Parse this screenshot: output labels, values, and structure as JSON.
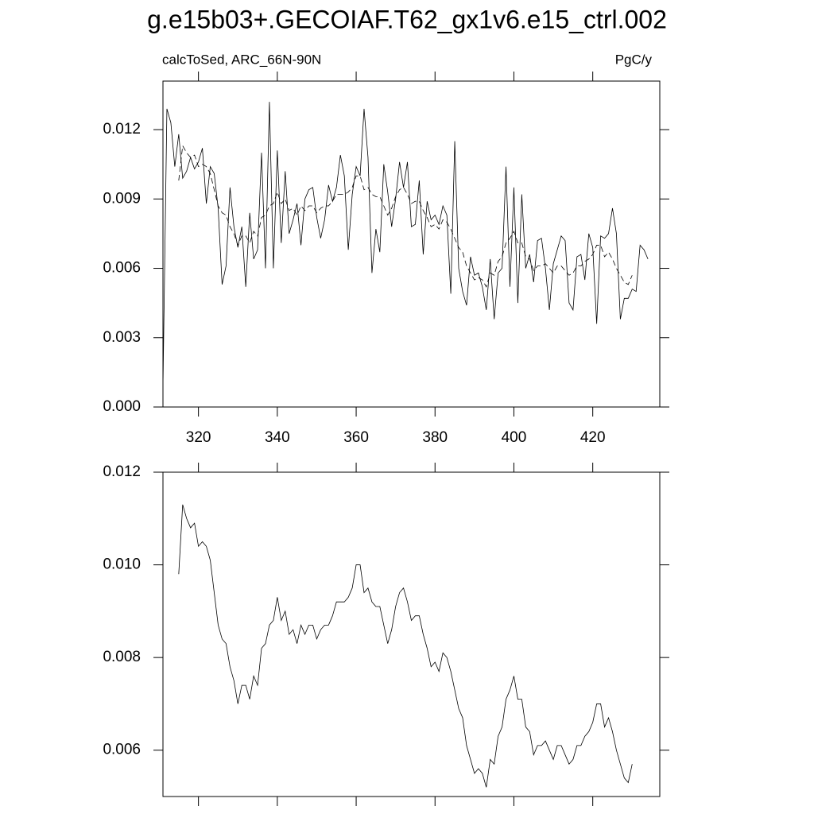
{
  "title": "g.e15b03+.GECOIAF.T62_gx1v6.e15_ctrl.002",
  "chart_data": [
    {
      "type": "line",
      "subtitle_left": "calcToSed, ARC_66N-90N",
      "subtitle_right": "PgC/y",
      "xlim": [
        311,
        437
      ],
      "xticks": [
        320,
        340,
        360,
        380,
        400,
        420
      ],
      "show_xtick_labels": true,
      "ylim": [
        0,
        0.0141
      ],
      "yticks": [
        {
          "value": 0,
          "label": "0.000"
        },
        0.003,
        0.006,
        0.009,
        0.012
      ],
      "series": [
        {
          "color": "#000000",
          "dashed": false,
          "x": [
            311,
            312,
            313,
            314,
            315,
            316,
            317,
            318,
            319,
            320,
            321,
            322,
            323,
            324,
            325,
            326,
            327,
            328,
            329,
            330,
            331,
            332,
            333,
            334,
            335,
            336,
            337,
            338,
            339,
            340,
            341,
            342,
            343,
            344,
            345,
            346,
            347,
            348,
            349,
            350,
            351,
            352,
            353,
            354,
            355,
            356,
            357,
            358,
            359,
            360,
            361,
            362,
            363,
            364,
            365,
            366,
            367,
            368,
            369,
            370,
            371,
            372,
            373,
            374,
            375,
            376,
            377,
            378,
            379,
            380,
            381,
            382,
            383,
            384,
            385,
            386,
            387,
            388,
            389,
            390,
            391,
            392,
            393,
            394,
            395,
            396,
            397,
            398,
            399,
            400,
            401,
            402,
            403,
            404,
            405,
            406,
            407,
            408,
            409,
            410,
            411,
            412,
            413,
            414,
            415,
            416,
            417,
            418,
            419,
            420,
            421,
            422,
            423,
            424,
            425,
            426,
            427,
            428,
            429,
            430,
            431,
            432,
            433,
            434
          ],
          "values": [
            0.0009,
            0.0129,
            0.0123,
            0.0104,
            0.0118,
            0.0099,
            0.0102,
            0.0108,
            0.0103,
            0.0106,
            0.0112,
            0.0088,
            0.0104,
            0.0101,
            0.0086,
            0.0053,
            0.0061,
            0.0095,
            0.0078,
            0.0069,
            0.0078,
            0.0052,
            0.0084,
            0.0064,
            0.0068,
            0.011,
            0.006,
            0.0132,
            0.006,
            0.0111,
            0.0071,
            0.0102,
            0.0075,
            0.0081,
            0.0088,
            0.007,
            0.009,
            0.0094,
            0.0095,
            0.0082,
            0.0073,
            0.0081,
            0.0096,
            0.0089,
            0.0095,
            0.0109,
            0.01,
            0.0068,
            0.0092,
            0.0104,
            0.01,
            0.0129,
            0.0108,
            0.0058,
            0.0077,
            0.0067,
            0.0105,
            0.0093,
            0.0078,
            0.009,
            0.0106,
            0.0095,
            0.0106,
            0.0078,
            0.0079,
            0.0098,
            0.0066,
            0.0089,
            0.0081,
            0.0083,
            0.0079,
            0.0087,
            0.0083,
            0.0049,
            0.0115,
            0.006,
            0.005,
            0.0044,
            0.0065,
            0.0057,
            0.0058,
            0.0052,
            0.0042,
            0.0064,
            0.0038,
            0.0058,
            0.006,
            0.0104,
            0.0052,
            0.0095,
            0.0045,
            0.0092,
            0.006,
            0.0066,
            0.0054,
            0.0072,
            0.0073,
            0.006,
            0.0042,
            0.0062,
            0.0068,
            0.0074,
            0.0072,
            0.0045,
            0.0042,
            0.0065,
            0.0066,
            0.0055,
            0.0075,
            0.0069,
            0.0036,
            0.0074,
            0.0073,
            0.0075,
            0.0086,
            0.0075,
            0.0038,
            0.0047,
            0.0047,
            0.0051,
            0.005,
            0.007,
            0.0068,
            0.0064
          ]
        },
        {
          "color": "#000000",
          "dashed": true,
          "x": [
            315,
            316,
            317,
            318,
            319,
            320,
            321,
            322,
            323,
            324,
            325,
            326,
            327,
            328,
            329,
            330,
            331,
            332,
            333,
            334,
            335,
            336,
            337,
            338,
            339,
            340,
            341,
            342,
            343,
            344,
            345,
            346,
            347,
            348,
            349,
            350,
            351,
            352,
            353,
            354,
            355,
            356,
            357,
            358,
            359,
            360,
            361,
            362,
            363,
            364,
            365,
            366,
            367,
            368,
            369,
            370,
            371,
            372,
            373,
            374,
            375,
            376,
            377,
            378,
            379,
            380,
            381,
            382,
            383,
            384,
            385,
            386,
            387,
            388,
            389,
            390,
            391,
            392,
            393,
            394,
            395,
            396,
            397,
            398,
            399,
            400,
            401,
            402,
            403,
            404,
            405,
            406,
            407,
            408,
            409,
            410,
            411,
            412,
            413,
            414,
            415,
            416,
            417,
            418,
            419,
            420,
            421,
            422,
            423,
            424,
            425,
            426,
            427,
            428,
            429,
            430
          ],
          "values": [
            0.0098,
            0.0113,
            0.011,
            0.0108,
            0.0109,
            0.0104,
            0.0105,
            0.0104,
            0.0101,
            0.0094,
            0.0087,
            0.0084,
            0.0083,
            0.0078,
            0.0075,
            0.007,
            0.0074,
            0.0074,
            0.0071,
            0.0076,
            0.0074,
            0.0082,
            0.0083,
            0.0087,
            0.0088,
            0.0093,
            0.0088,
            0.009,
            0.0085,
            0.0086,
            0.0083,
            0.0087,
            0.0085,
            0.0087,
            0.0087,
            0.0084,
            0.0086,
            0.0087,
            0.0087,
            0.0089,
            0.0092,
            0.0092,
            0.0092,
            0.0093,
            0.0095,
            0.01,
            0.01,
            0.0094,
            0.0095,
            0.0092,
            0.0091,
            0.0091,
            0.0087,
            0.0083,
            0.0086,
            0.0091,
            0.0094,
            0.0095,
            0.0092,
            0.0088,
            0.0089,
            0.0089,
            0.0085,
            0.0082,
            0.0078,
            0.0079,
            0.0077,
            0.0081,
            0.008,
            0.0077,
            0.0073,
            0.0069,
            0.0067,
            0.0061,
            0.0058,
            0.0055,
            0.0056,
            0.0055,
            0.0052,
            0.0058,
            0.0057,
            0.0063,
            0.0065,
            0.0071,
            0.0073,
            0.0076,
            0.0071,
            0.0071,
            0.0065,
            0.0064,
            0.0059,
            0.0061,
            0.0061,
            0.0062,
            0.006,
            0.0058,
            0.0061,
            0.0061,
            0.0059,
            0.0057,
            0.0058,
            0.0061,
            0.0061,
            0.0063,
            0.0064,
            0.0066,
            0.007,
            0.007,
            0.0065,
            0.0067,
            0.0064,
            0.006,
            0.0057,
            0.0054,
            0.0053,
            0.0057
          ]
        }
      ]
    },
    {
      "type": "line",
      "xlim": [
        311,
        437
      ],
      "xticks": [
        320,
        340,
        360,
        380,
        400,
        420
      ],
      "show_xtick_labels": false,
      "ylim": [
        0.005,
        0.012
      ],
      "yticks": [
        0.006,
        0.008,
        {
          "value": 0.01,
          "label": "0.010"
        },
        0.012
      ],
      "series": [
        {
          "color": "#000000",
          "dashed": false,
          "x": [
            315,
            316,
            317,
            318,
            319,
            320,
            321,
            322,
            323,
            324,
            325,
            326,
            327,
            328,
            329,
            330,
            331,
            332,
            333,
            334,
            335,
            336,
            337,
            338,
            339,
            340,
            341,
            342,
            343,
            344,
            345,
            346,
            347,
            348,
            349,
            350,
            351,
            352,
            353,
            354,
            355,
            356,
            357,
            358,
            359,
            360,
            361,
            362,
            363,
            364,
            365,
            366,
            367,
            368,
            369,
            370,
            371,
            372,
            373,
            374,
            375,
            376,
            377,
            378,
            379,
            380,
            381,
            382,
            383,
            384,
            385,
            386,
            387,
            388,
            389,
            390,
            391,
            392,
            393,
            394,
            395,
            396,
            397,
            398,
            399,
            400,
            401,
            402,
            403,
            404,
            405,
            406,
            407,
            408,
            409,
            410,
            411,
            412,
            413,
            414,
            415,
            416,
            417,
            418,
            419,
            420,
            421,
            422,
            423,
            424,
            425,
            426,
            427,
            428,
            429,
            430
          ],
          "values": [
            0.0098,
            0.0113,
            0.011,
            0.0108,
            0.0109,
            0.0104,
            0.0105,
            0.0104,
            0.0101,
            0.0094,
            0.0087,
            0.0084,
            0.0083,
            0.0078,
            0.0075,
            0.007,
            0.0074,
            0.0074,
            0.0071,
            0.0076,
            0.0074,
            0.0082,
            0.0083,
            0.0087,
            0.0088,
            0.0093,
            0.0088,
            0.009,
            0.0085,
            0.0086,
            0.0083,
            0.0087,
            0.0085,
            0.0087,
            0.0087,
            0.0084,
            0.0086,
            0.0087,
            0.0087,
            0.0089,
            0.0092,
            0.0092,
            0.0092,
            0.0093,
            0.0095,
            0.01,
            0.01,
            0.0094,
            0.0095,
            0.0092,
            0.0091,
            0.0091,
            0.0087,
            0.0083,
            0.0086,
            0.0091,
            0.0094,
            0.0095,
            0.0092,
            0.0088,
            0.0089,
            0.0089,
            0.0085,
            0.0082,
            0.0078,
            0.0079,
            0.0077,
            0.0081,
            0.008,
            0.0077,
            0.0073,
            0.0069,
            0.0067,
            0.0061,
            0.0058,
            0.0055,
            0.0056,
            0.0055,
            0.0052,
            0.0058,
            0.0057,
            0.0063,
            0.0065,
            0.0071,
            0.0073,
            0.0076,
            0.0071,
            0.0071,
            0.0065,
            0.0064,
            0.0059,
            0.0061,
            0.0061,
            0.0062,
            0.006,
            0.0058,
            0.0061,
            0.0061,
            0.0059,
            0.0057,
            0.0058,
            0.0061,
            0.0061,
            0.0063,
            0.0064,
            0.0066,
            0.007,
            0.007,
            0.0065,
            0.0067,
            0.0064,
            0.006,
            0.0057,
            0.0054,
            0.0053,
            0.0057
          ]
        }
      ]
    }
  ]
}
